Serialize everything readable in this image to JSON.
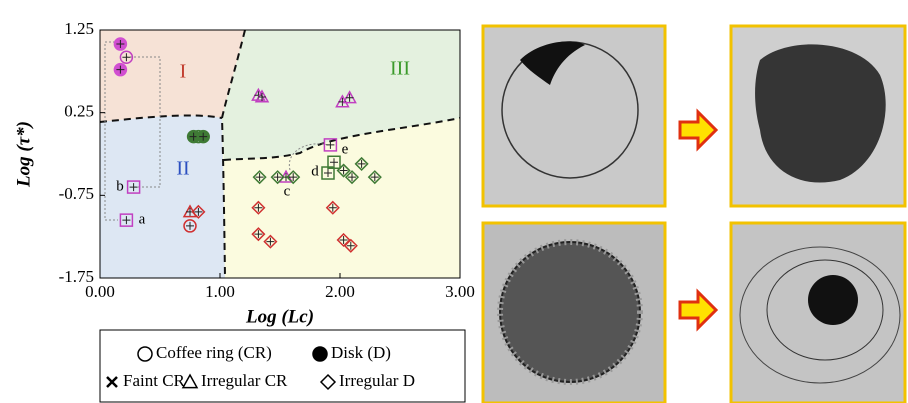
{
  "chart_data": {
    "type": "scatter",
    "x_label": "Log (Lc)",
    "y_label": "Log (τ*)",
    "region_labels": [
      "I",
      "II",
      "III"
    ],
    "point_labels": [
      "a",
      "b",
      "c",
      "d",
      "e"
    ],
    "xlim": [
      0,
      3
    ],
    "ylim": [
      -1.75,
      1.25
    ],
    "xticks": [
      {
        "value": 0,
        "label": "0.00"
      },
      {
        "value": 1,
        "label": "1.00"
      },
      {
        "value": 2,
        "label": "2.00"
      },
      {
        "value": 3,
        "label": "3.00"
      }
    ],
    "yticks": [
      1.25,
      0.25,
      -0.75,
      -1.75
    ],
    "series": [
      {
        "name": "Coffee ring (CR)",
        "marker": "circle",
        "x": [
          0.22,
          0.75,
          0.82
        ],
        "values": [
          0.92,
          -1.12,
          -0.04
        ],
        "colors": [
          "#c13fc1",
          "#d03030",
          "#3f7a35"
        ]
      },
      {
        "name": "Disk (D)",
        "marker": "disk",
        "x": [
          0.17,
          0.17,
          0.78,
          0.86
        ],
        "values": [
          1.08,
          0.77,
          -0.04,
          -0.04
        ],
        "colors": [
          "#d14fd1",
          "#d14fd1",
          "#3f7a35",
          "#3f7a35"
        ]
      },
      {
        "name": "Faint CR",
        "marker": "square",
        "x": [
          0.28,
          0.22,
          1.9,
          1.95,
          1.92
        ],
        "values": [
          -0.65,
          -1.05,
          -0.48,
          -0.35,
          -0.14
        ],
        "colors": [
          "#c13fc1",
          "#c13fc1",
          "#3f7a35",
          "#3f7a35",
          "#c13fc1"
        ]
      },
      {
        "name": "Irregular CR",
        "marker": "triangle",
        "x": [
          0.75,
          1.32,
          1.35,
          2.02,
          2.08,
          1.55
        ],
        "values": [
          -0.95,
          0.46,
          0.44,
          0.38,
          0.43,
          -0.53
        ],
        "colors": [
          "#d03030",
          "#c13fc1",
          "#c13fc1",
          "#c13fc1",
          "#c13fc1",
          "#c13fc1"
        ]
      },
      {
        "name": "Irregular D",
        "marker": "diamond",
        "x": [
          0.82,
          1.33,
          1.48,
          1.61,
          2.03,
          2.1,
          2.18,
          2.29,
          1.32,
          1.32,
          1.42,
          1.94,
          2.03,
          2.09
        ],
        "values": [
          -0.95,
          -0.53,
          -0.53,
          -0.53,
          -0.45,
          -0.53,
          -0.37,
          -0.53,
          -0.9,
          -1.22,
          -1.31,
          -0.9,
          -1.29,
          -1.36
        ],
        "colors": [
          "#d03030",
          "#3f7a35",
          "#3f7a35",
          "#3f7a35",
          "#3f7a35",
          "#3f7a35",
          "#3f7a35",
          "#3f7a35",
          "#d03030",
          "#d03030",
          "#d03030",
          "#d03030",
          "#d03030",
          "#d03030"
        ]
      }
    ]
  }
}
